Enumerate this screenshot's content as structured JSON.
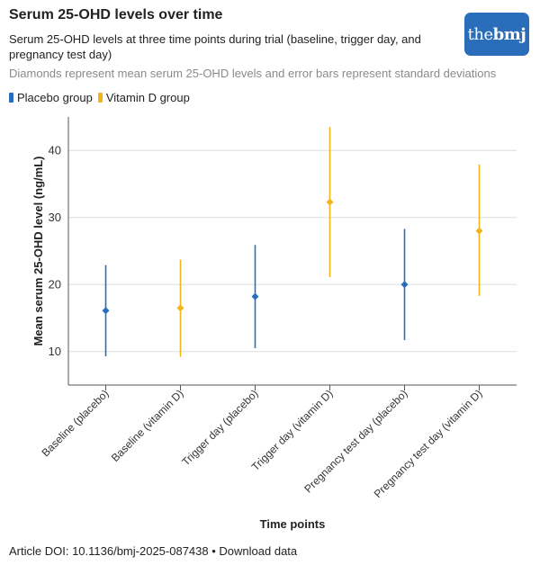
{
  "header": {
    "title": "Serum 25-OHD levels over time",
    "subtitle": "Serum 25-OHD levels at three time points during trial (baseline, trigger day, and pregnancy test day)",
    "note": "Diamonds represent mean serum 25-OHD levels and error bars represent standard deviations",
    "logo_the": "the",
    "logo_bmj": "bmj"
  },
  "legend": [
    {
      "label": "Placebo group",
      "color": "#2a6ebb"
    },
    {
      "label": "Vitamin D group",
      "color": "#f2b618"
    }
  ],
  "chart_data": {
    "type": "scatter",
    "xlabel": "Time points",
    "ylabel": "Mean serum 25-OHD level (ng/mL)",
    "ylim": [
      5,
      45
    ],
    "yticks": [
      10,
      20,
      30,
      40
    ],
    "grid": true,
    "categories": [
      "Baseline (placebo)",
      "Baseline (vitamin D)",
      "Trigger day (placebo)",
      "Trigger day (vitamin D)",
      "Pregnancy test day (placebo)",
      "Pregnancy test day (vitamin D)"
    ],
    "points": [
      {
        "category": "Baseline (placebo)",
        "group": "Placebo group",
        "mean": 16.1,
        "low": 9.3,
        "high": 22.9
      },
      {
        "category": "Baseline (vitamin D)",
        "group": "Vitamin D group",
        "mean": 16.5,
        "low": 9.2,
        "high": 23.7
      },
      {
        "category": "Trigger day (placebo)",
        "group": "Placebo group",
        "mean": 18.2,
        "low": 10.5,
        "high": 25.9
      },
      {
        "category": "Trigger day (vitamin D)",
        "group": "Vitamin D group",
        "mean": 32.3,
        "low": 21.1,
        "high": 43.5
      },
      {
        "category": "Pregnancy test day (placebo)",
        "group": "Placebo group",
        "mean": 20.0,
        "low": 11.7,
        "high": 28.3
      },
      {
        "category": "Pregnancy test day (vitamin D)",
        "group": "Vitamin D group",
        "mean": 28.0,
        "low": 18.3,
        "high": 37.9
      }
    ],
    "colors": {
      "Placebo group": "#2a6ebb",
      "Vitamin D group": "#f2b618"
    }
  },
  "footer": {
    "doi": "Article DOI: 10.1136/bmj-2025-087438",
    "separator": "•",
    "download": "Download data"
  }
}
